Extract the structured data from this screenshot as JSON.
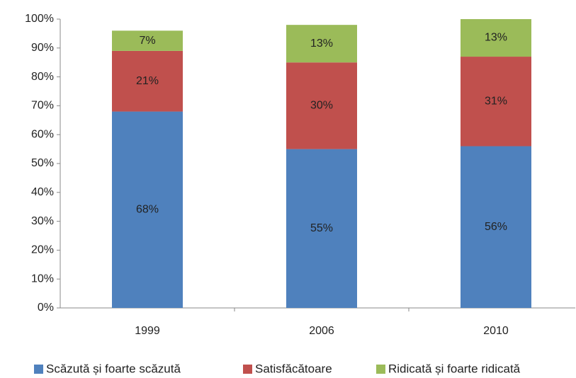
{
  "chart_data": {
    "type": "stacked_bar",
    "categories": [
      "1999",
      "2006",
      "2010"
    ],
    "series": [
      {
        "name": "Scăzută și foarte scăzută",
        "color": "#4f81bd",
        "values": [
          68,
          55,
          56
        ],
        "value_labels": [
          "68%",
          "55%",
          "56%"
        ]
      },
      {
        "name": "Satisfăcătoare",
        "color": "#c0504d",
        "values": [
          21,
          30,
          31
        ],
        "value_labels": [
          "21%",
          "30%",
          "31%"
        ]
      },
      {
        "name": "Ridicată și foarte ridicată",
        "color": "#9bbb59",
        "values": [
          7,
          13,
          13
        ],
        "value_labels": [
          "7%",
          "13%",
          "13%"
        ]
      }
    ],
    "ylim": [
      0,
      100
    ],
    "yticks": [
      {
        "value": 0,
        "label": "0%"
      },
      {
        "value": 10,
        "label": "10%"
      },
      {
        "value": 20,
        "label": "20%"
      },
      {
        "value": 30,
        "label": "30%"
      },
      {
        "value": 40,
        "label": "40%"
      },
      {
        "value": 50,
        "label": "50%"
      },
      {
        "value": 60,
        "label": "60%"
      },
      {
        "value": 70,
        "label": "70%"
      },
      {
        "value": 80,
        "label": "80%"
      },
      {
        "value": 90,
        "label": "90%"
      },
      {
        "value": 100,
        "label": "100%"
      }
    ],
    "legend": "bottom"
  }
}
